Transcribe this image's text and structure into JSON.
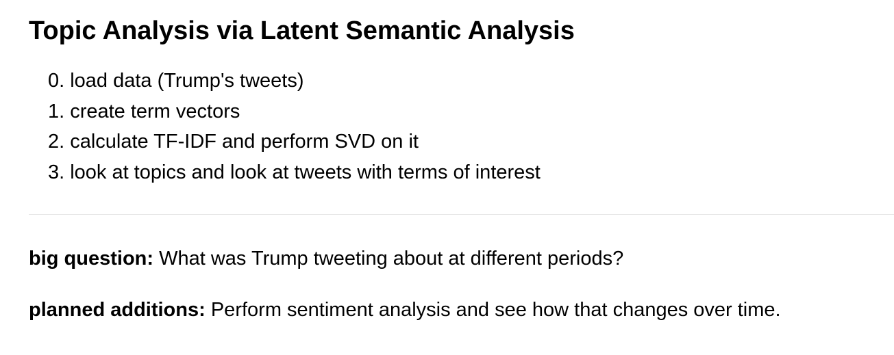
{
  "title": "Topic Analysis via Latent Semantic Analysis",
  "steps": [
    {
      "num": "0.",
      "text": "load data (Trump's tweets)"
    },
    {
      "num": "1.",
      "text": "create term vectors"
    },
    {
      "num": "2.",
      "text": "calculate TF-IDF and perform SVD on it"
    },
    {
      "num": "3.",
      "text": "look at topics and look at tweets with terms of interest"
    }
  ],
  "big_question": {
    "label": "big question:",
    "text": "What was Trump tweeting about at different periods?"
  },
  "planned_additions": {
    "label": "planned additions:",
    "text": "Perform sentiment analysis and see how that changes over time."
  }
}
